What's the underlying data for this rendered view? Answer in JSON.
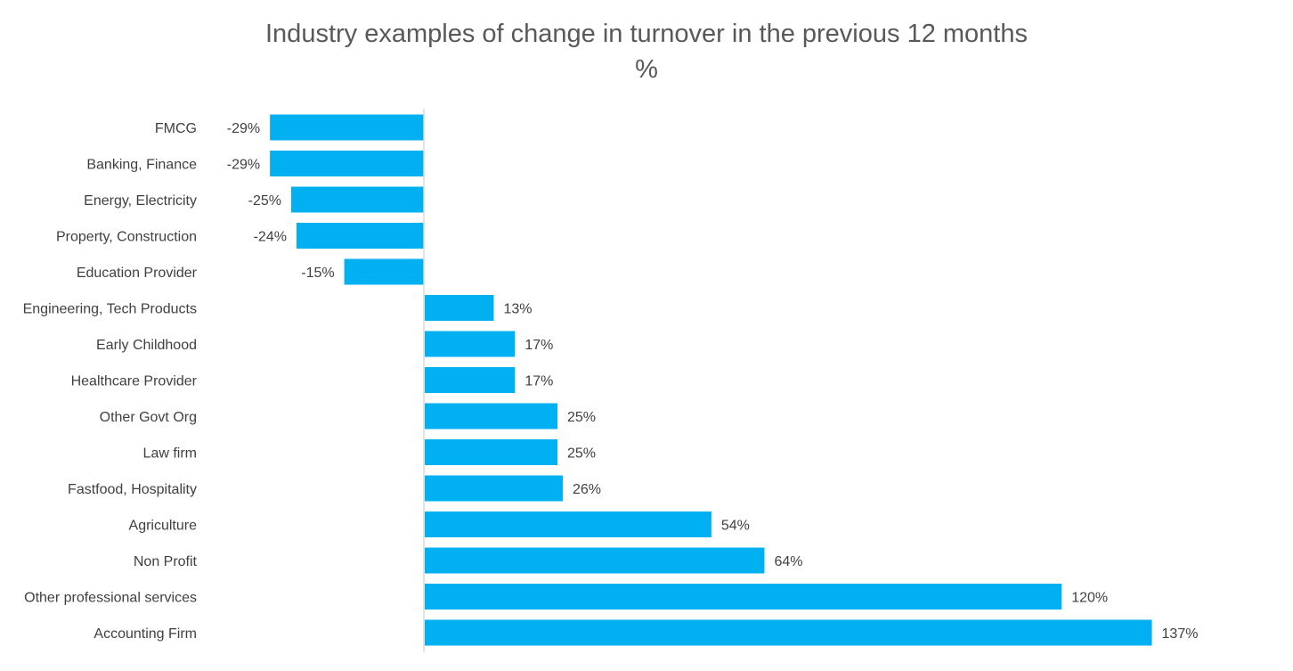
{
  "chart_data": {
    "type": "bar",
    "orientation": "horizontal",
    "title": "Industry examples of change in turnover in the previous 12 months",
    "subtitle": "%",
    "xlabel": "",
    "ylabel": "",
    "xlim": [
      -40,
      140
    ],
    "grid": false,
    "legend": "none",
    "bar_color": "#00B0F0",
    "categories": [
      "FMCG",
      "Banking, Finance",
      "Energy, Electricity",
      "Property, Construction",
      "Education Provider",
      "Engineering, Tech Products",
      "Early Childhood",
      "Healthcare Provider",
      "Other Govt Org",
      "Law firm",
      "Fastfood, Hospitality",
      "Agriculture",
      "Non Profit",
      "Other professional services",
      "Accounting Firm"
    ],
    "values": [
      -29,
      -29,
      -25,
      -24,
      -15,
      13,
      17,
      17,
      25,
      25,
      26,
      54,
      64,
      120,
      137
    ],
    "data_labels": [
      "-29%",
      "-29%",
      "-25%",
      "-24%",
      "-15%",
      "13%",
      "17%",
      "17%",
      "25%",
      "25%",
      "26%",
      "54%",
      "64%",
      "120%",
      "137%"
    ]
  }
}
